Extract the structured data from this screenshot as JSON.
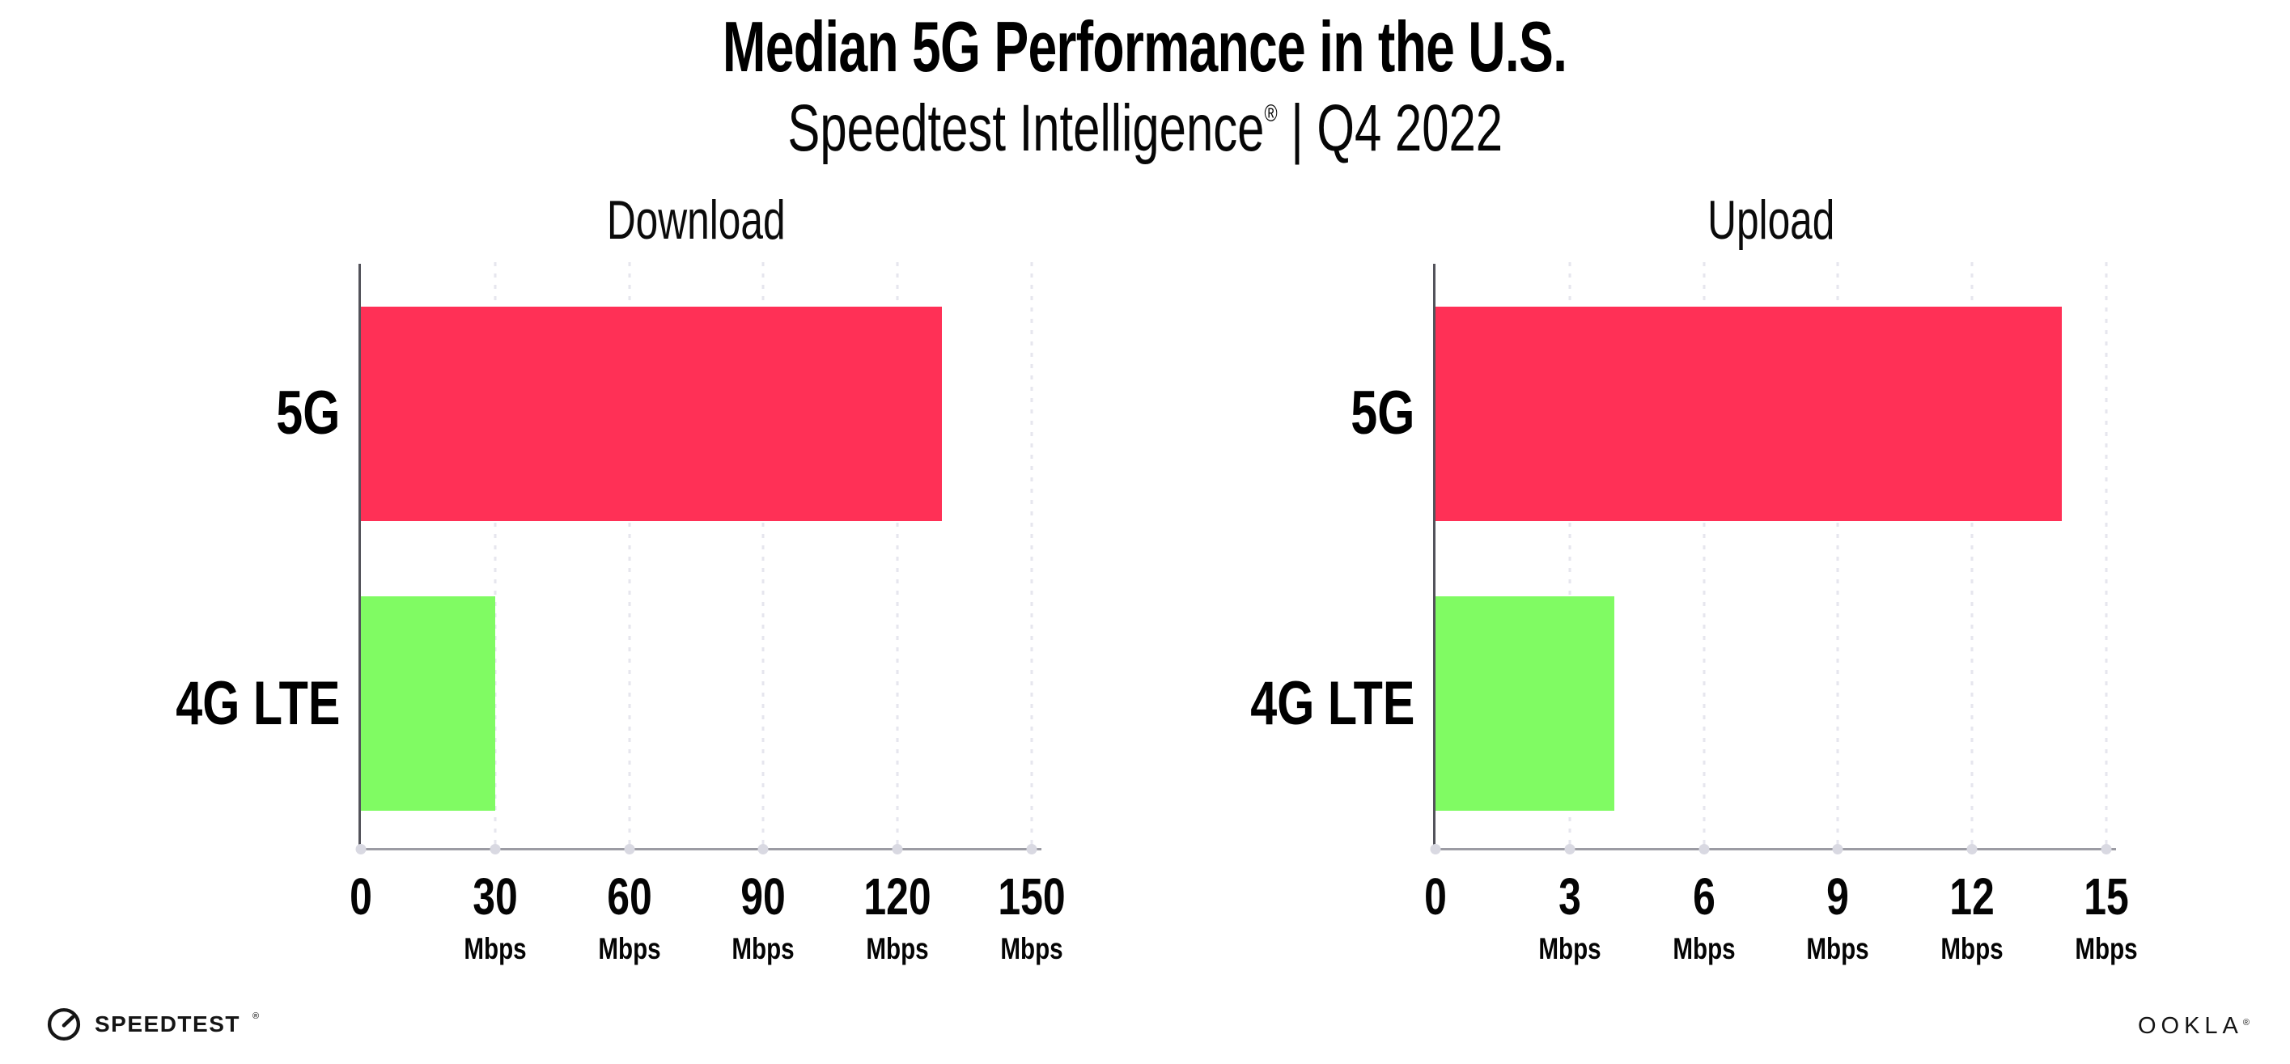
{
  "header": {
    "title": "Median 5G Performance in the U.S.",
    "subtitle_product": "Speedtest Intelligence",
    "subtitle_reg": "®",
    "subtitle_rest": "| Q4 2022"
  },
  "chart_data": [
    {
      "type": "bar",
      "orientation": "horizontal",
      "title": "Download",
      "categories": [
        "5G",
        "4G LTE"
      ],
      "values": [
        130,
        30
      ],
      "unit": "Mbps",
      "xlim": [
        0,
        150
      ],
      "xticks": [
        0,
        30,
        60,
        90,
        120,
        150
      ],
      "bar_colors": [
        "#FF3056",
        "#80FB63"
      ],
      "grid": "dotted-vertical",
      "legend": "none"
    },
    {
      "type": "bar",
      "orientation": "horizontal",
      "title": "Upload",
      "categories": [
        "5G",
        "4G LTE"
      ],
      "values": [
        14,
        4
      ],
      "unit": "Mbps",
      "xlim": [
        0,
        15
      ],
      "xticks": [
        0,
        3,
        6,
        9,
        12,
        15
      ],
      "bar_colors": [
        "#FF3056",
        "#80FB63"
      ],
      "grid": "dotted-vertical",
      "legend": "none"
    }
  ],
  "footer": {
    "speedtest_label": "SPEEDTEST",
    "speedtest_mark": "®",
    "ookla_label": "OOKLA",
    "ookla_mark": "®"
  },
  "colors": {
    "bar_5g": "#FF3056",
    "bar_4g_lte": "#80FB63",
    "grid": "#E6E6EE",
    "axis_x": "#9B9BA3",
    "axis_y": "#53535B",
    "tick_dot": "#D9D9E2",
    "text": "#000000"
  }
}
